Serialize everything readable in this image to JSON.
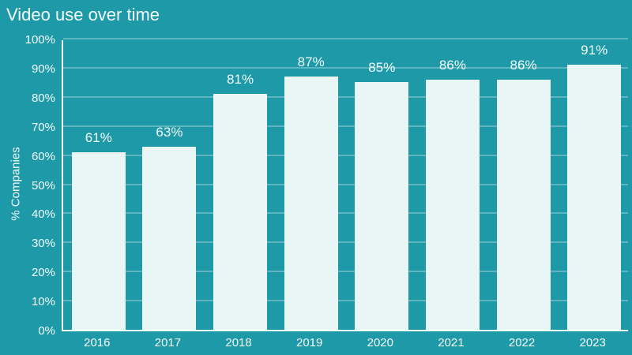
{
  "chart_data": {
    "type": "bar",
    "title": "Video use over time",
    "categories": [
      "2016",
      "2017",
      "2018",
      "2019",
      "2020",
      "2021",
      "2022",
      "2023"
    ],
    "values": [
      61,
      63,
      81,
      87,
      85,
      86,
      86,
      91
    ],
    "value_labels": [
      "61%",
      "63%",
      "81%",
      "87%",
      "85%",
      "86%",
      "86%",
      "91%"
    ],
    "xlabel": "",
    "ylabel": "% Companies",
    "ylim": [
      0,
      100
    ],
    "ytick_step": 10,
    "ytick_labels": [
      "0%",
      "10%",
      "20%",
      "30%",
      "40%",
      "50%",
      "60%",
      "70%",
      "80%",
      "90%",
      "100%"
    ],
    "grid": true,
    "legend": "none",
    "colors": {
      "background": "#1E99A7",
      "bar_fill": "#E9F6F6",
      "gridline": "rgba(255,255,255,0.28)",
      "axis_line": "#F2FAFA",
      "text": "#F5FCFC"
    }
  }
}
